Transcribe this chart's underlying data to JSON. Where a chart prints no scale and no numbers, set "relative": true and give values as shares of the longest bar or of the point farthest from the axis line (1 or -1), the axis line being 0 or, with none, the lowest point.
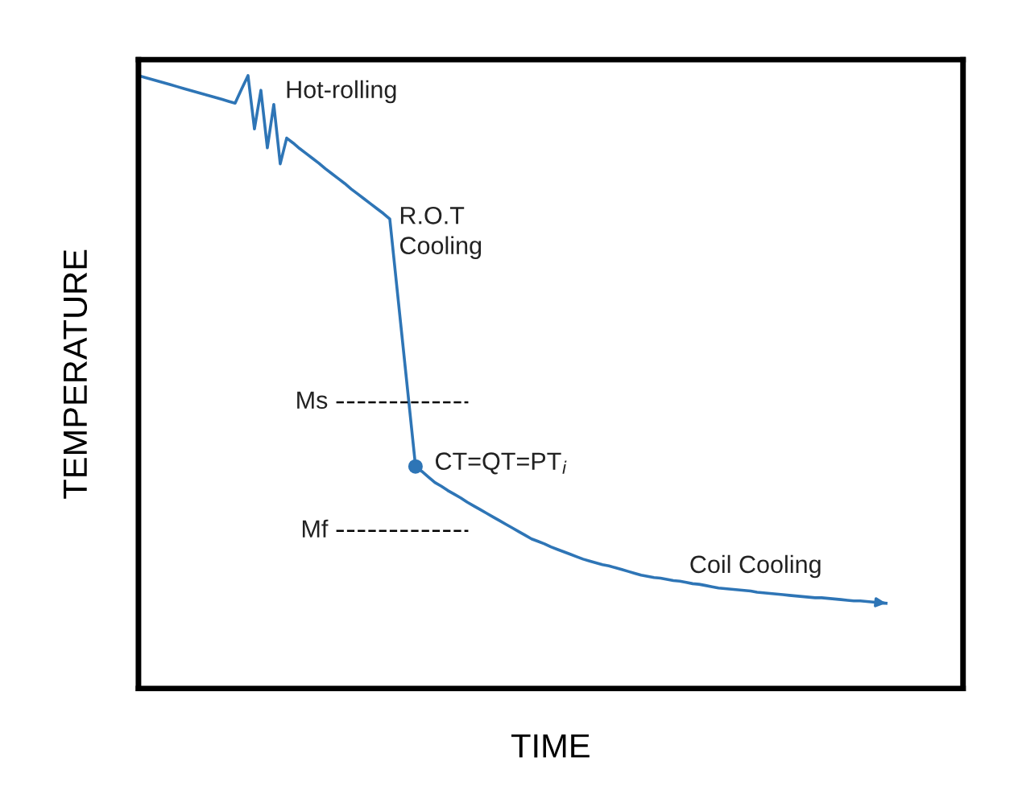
{
  "chart_data": {
    "type": "line",
    "relative": true,
    "xlabel": "TIME",
    "ylabel": "TEMPERATURE",
    "tick_labels": false,
    "legend": false,
    "categories": [
      null,
      null,
      null,
      null,
      null,
      null,
      null,
      null,
      null,
      null,
      null,
      null,
      null,
      null,
      null,
      null,
      null,
      null,
      null,
      null,
      null,
      null,
      null,
      null,
      null,
      null,
      null,
      null,
      null,
      null,
      null,
      null,
      null,
      null,
      null,
      null,
      null,
      null,
      null,
      null,
      null,
      null,
      null,
      null,
      null,
      null,
      null,
      null,
      null,
      null,
      null,
      null,
      null,
      null,
      null,
      null,
      null,
      null,
      null,
      null,
      null,
      null,
      null,
      null,
      null,
      null,
      null,
      null,
      null,
      null,
      null,
      null,
      null,
      null,
      null,
      null,
      null,
      null,
      null,
      null,
      null,
      null,
      null,
      null,
      null,
      null,
      null,
      null,
      null,
      null,
      null,
      null,
      null,
      null,
      null,
      null,
      null,
      null,
      null,
      null,
      null,
      null,
      null,
      null,
      null,
      null,
      null,
      null,
      null,
      null,
      null,
      null,
      null,
      null,
      null,
      null,
      null
    ],
    "series": [
      {
        "color": "#2e75b6",
        "marker": "none",
        "line_style": "solid",
        "values": [
          1.0,
          0.997,
          0.994,
          0.991,
          0.988,
          0.985,
          0.982,
          0.979,
          0.976,
          0.973,
          0.97,
          0.967,
          0.964,
          0.961,
          0.958,
          0.955,
          0.978,
          1.0,
          0.913,
          0.976,
          0.882,
          0.953,
          0.856,
          0.898,
          0.89,
          0.881,
          0.873,
          0.865,
          0.857,
          0.848,
          0.84,
          0.832,
          0.824,
          0.815,
          0.807,
          0.799,
          0.791,
          0.783,
          0.775,
          0.766,
          0.665,
          0.564,
          0.463,
          0.362,
          0.354,
          0.345,
          0.336,
          0.33,
          0.323,
          0.317,
          0.311,
          0.304,
          0.298,
          0.292,
          0.286,
          0.28,
          0.274,
          0.268,
          0.262,
          0.256,
          0.25,
          0.244,
          0.24,
          0.236,
          0.231,
          0.227,
          0.223,
          0.219,
          0.215,
          0.211,
          0.208,
          0.205,
          0.202,
          0.2,
          0.197,
          0.194,
          0.191,
          0.188,
          0.185,
          0.183,
          0.181,
          0.18,
          0.178,
          0.176,
          0.175,
          0.173,
          0.171,
          0.17,
          0.168,
          0.166,
          0.164,
          0.163,
          0.162,
          0.161,
          0.16,
          0.159,
          0.157,
          0.156,
          0.155,
          0.154,
          0.153,
          0.152,
          0.151,
          0.15,
          0.149,
          0.148,
          0.148,
          0.147,
          0.146,
          0.145,
          0.144,
          0.143,
          0.143,
          0.142,
          0.141,
          0.14,
          0.139
        ]
      }
    ],
    "ref_lines": [
      {
        "axis": "y",
        "value": 0.467,
        "label": "Ms",
        "color": "#000000",
        "line_style": "dashed"
      },
      {
        "axis": "y",
        "value": 0.257,
        "label": "Mf",
        "color": "#000000",
        "line_style": "dashed"
      }
    ],
    "annotations": [
      "Hot-rolling",
      "R.O.T\nCooling",
      "CT=QT=PT$_{i}$",
      "Coil Cooling"
    ]
  }
}
